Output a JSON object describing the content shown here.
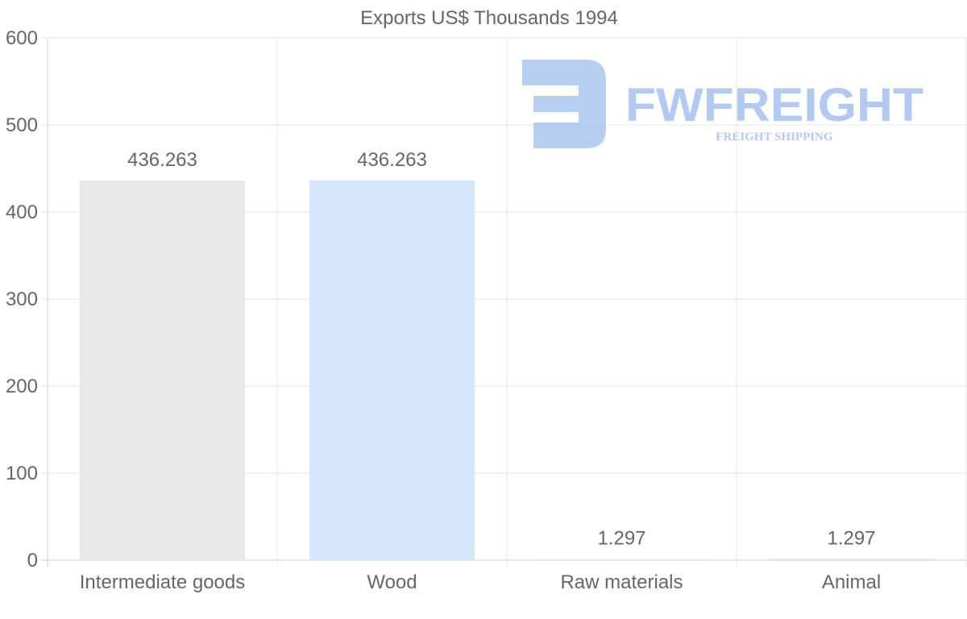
{
  "chart_data": {
    "type": "bar",
    "title": "Exports US$ Thousands 1994",
    "categories": [
      "Intermediate goods",
      "Wood",
      "Raw materials",
      "Animal"
    ],
    "values": [
      436.263,
      436.263,
      1.297,
      1.297
    ],
    "data_labels": [
      "436.263",
      "436.263",
      "1.297",
      "1.297"
    ],
    "bar_colors": [
      "#e8e8e8",
      "#d6e7f9",
      "#e8eef6",
      "#bfeee9"
    ],
    "ylim": [
      0,
      600
    ],
    "yticks": [
      0,
      100,
      200,
      300,
      400,
      500,
      600
    ],
    "grid": true,
    "xlabel": "",
    "ylabel": ""
  },
  "watermark": {
    "brand": "FWFREIGHT",
    "tagline": "FREIGHT SHIPPING",
    "color": "#aac5f0"
  }
}
